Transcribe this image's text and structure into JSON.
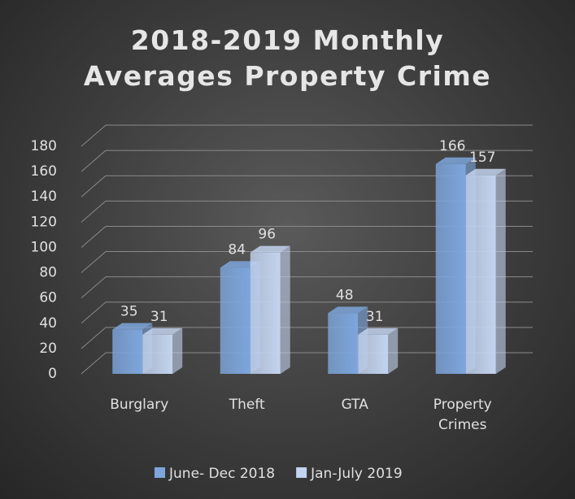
{
  "chart_data": {
    "type": "bar3d",
    "title": "2018-2019 Monthly Averages Property Crime",
    "categories": [
      "Burglary",
      "Theft",
      "GTA",
      "Property Crimes"
    ],
    "series": [
      {
        "name": "June- Dec 2018",
        "color": "#7ea6dd",
        "values": [
          35,
          84,
          48,
          166
        ]
      },
      {
        "name": "Jan-July 2019",
        "color": "#c3d4ef",
        "values": [
          31,
          96,
          31,
          157
        ]
      }
    ],
    "ylim": [
      0,
      180
    ],
    "yticks": [
      0,
      20,
      40,
      60,
      80,
      100,
      120,
      140,
      160,
      180
    ],
    "grid": true,
    "legend": "bottom"
  }
}
